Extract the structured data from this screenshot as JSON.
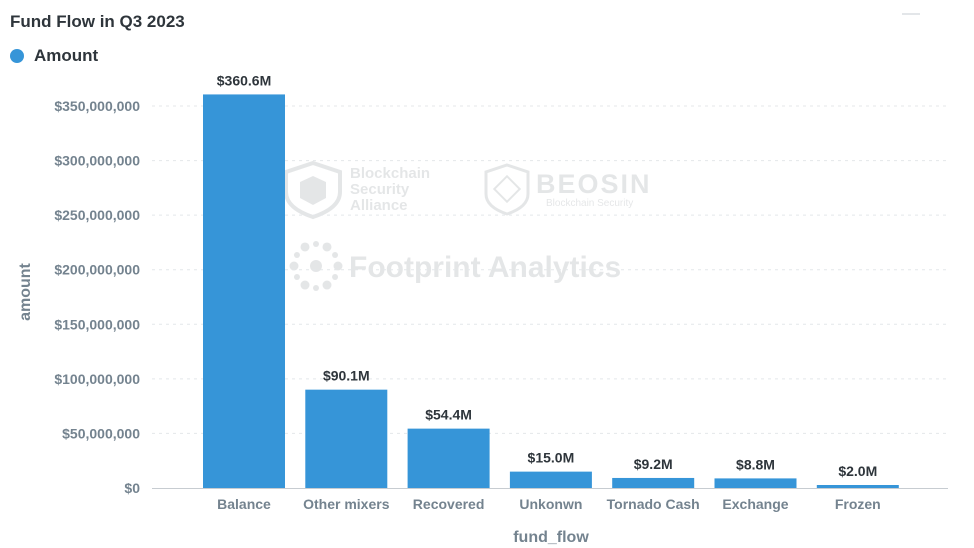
{
  "chart_data": {
    "type": "bar",
    "title": "Fund Flow in Q3 2023",
    "legend": [
      {
        "name": "Amount",
        "color": "#3695d8"
      }
    ],
    "xlabel": "fund_flow",
    "ylabel": "amount",
    "categories": [
      "Balance",
      "Other mixers",
      "Recovered",
      "Unkonwn",
      "Tornado Cash",
      "Exchange",
      "Frozen"
    ],
    "values": [
      360600000,
      90100000,
      54400000,
      15000000,
      9200000,
      8800000,
      2000000
    ],
    "data_labels": [
      "$360.6M",
      "$90.1M",
      "$54.4M",
      "$15.0M",
      "$9.2M",
      "$8.8M",
      "$2.0M"
    ],
    "y_ticks": [
      0,
      50000000,
      100000000,
      150000000,
      200000000,
      250000000,
      300000000,
      350000000
    ],
    "y_tick_labels": [
      "$0",
      "$50,000,000",
      "$100,000,000",
      "$150,000,000",
      "$200,000,000",
      "$250,000,000",
      "$300,000,000",
      "$350,000,000"
    ],
    "ylim": [
      0,
      350000000
    ],
    "grid": true,
    "bar_color": "#3695d8"
  },
  "watermarks": {
    "bsa": "Blockchain Security Alliance",
    "beosin": "BEOSIN",
    "beosin_sub": "Blockchain Security",
    "footprint": "Footprint Analytics"
  }
}
